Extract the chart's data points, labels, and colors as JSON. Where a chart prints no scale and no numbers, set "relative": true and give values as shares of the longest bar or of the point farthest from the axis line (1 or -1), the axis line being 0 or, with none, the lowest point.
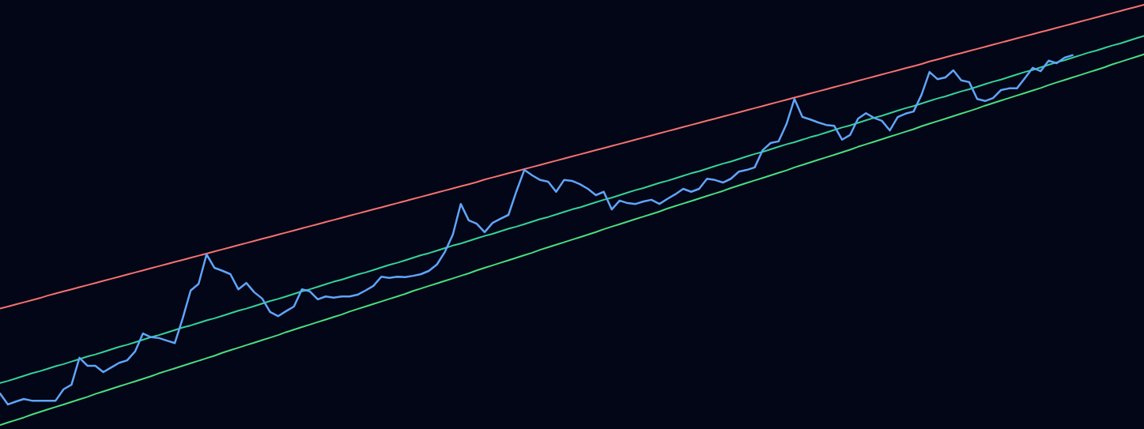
{
  "chart_data": {
    "type": "line",
    "relative": true,
    "categories": [
      null,
      null,
      null,
      null,
      null,
      null,
      null,
      null,
      null,
      null,
      null,
      null,
      null,
      null,
      null,
      null,
      null,
      null,
      null,
      null,
      null,
      null,
      null,
      null,
      null,
      null,
      null,
      null,
      null,
      null,
      null,
      null,
      null,
      null,
      null,
      null,
      null,
      null,
      null,
      null,
      null,
      null,
      null,
      null,
      null,
      null,
      null,
      null,
      null,
      null,
      null,
      null,
      null,
      null,
      null,
      null,
      null,
      null,
      null,
      null,
      null,
      null,
      null,
      null,
      null,
      null,
      null,
      null,
      null,
      null,
      null,
      null,
      null,
      null,
      null,
      null,
      null,
      null,
      null,
      null,
      null,
      null,
      null,
      null,
      null,
      null,
      null,
      null,
      null,
      null,
      null,
      null,
      null,
      null,
      null,
      null,
      null,
      null,
      null,
      null,
      null,
      null,
      null,
      null,
      null,
      null,
      null,
      null,
      null,
      null,
      null,
      null,
      null,
      null,
      null,
      null,
      null,
      null,
      null,
      null,
      null,
      null,
      null,
      null,
      null,
      null,
      null,
      null,
      null,
      null,
      null,
      null,
      null,
      null,
      null,
      null,
      null,
      null,
      null,
      null,
      null,
      null,
      null,
      null,
      null
    ],
    "series": [
      {
        "color": "#f87171",
        "values": [
          0.277,
          0.282,
          0.287,
          0.292,
          0.297,
          0.302,
          0.308,
          0.313,
          0.318,
          0.323,
          0.328,
          0.333,
          0.338,
          0.343,
          0.348,
          0.353,
          0.358,
          0.363,
          0.368,
          0.373,
          0.378,
          0.383,
          0.388,
          0.393,
          0.398,
          0.403,
          0.408,
          0.413,
          0.418,
          0.423,
          0.428,
          0.433,
          0.438,
          0.443,
          0.448,
          0.453,
          0.458,
          0.463,
          0.468,
          0.473,
          0.478,
          0.483,
          0.488,
          0.493,
          0.498,
          0.503,
          0.508,
          0.513,
          0.518,
          0.523,
          0.528,
          0.533,
          0.538,
          0.543,
          0.548,
          0.553,
          0.558,
          0.563,
          0.568,
          0.573,
          0.578,
          0.584,
          0.589,
          0.594,
          0.599,
          0.604,
          0.609,
          0.614,
          0.619,
          0.624,
          0.629,
          0.634,
          0.639,
          0.644,
          0.649,
          0.654,
          0.659,
          0.664,
          0.669,
          0.674,
          0.679,
          0.684,
          0.689,
          0.694,
          0.699,
          0.704,
          0.709,
          0.714,
          0.719,
          0.724,
          0.729,
          0.734,
          0.739,
          0.744,
          0.749,
          0.754,
          0.759,
          0.764,
          0.769,
          0.774,
          0.779,
          0.784,
          0.789,
          0.794,
          0.799,
          0.804,
          0.809,
          0.814,
          0.819,
          0.824,
          0.829,
          0.834,
          0.839,
          0.844,
          0.849,
          0.854,
          0.859,
          0.865,
          0.87,
          0.875,
          0.88,
          0.885,
          0.89,
          0.895,
          0.9,
          0.905,
          0.91,
          0.915,
          0.92,
          0.925,
          0.93,
          0.935,
          0.94,
          0.945,
          0.95,
          0.955,
          0.96,
          0.965,
          0.97,
          0.975,
          0.98,
          0.985,
          0.99,
          0.995,
          1.0
        ]
      },
      {
        "color": "#34d399",
        "values": [
          0.1,
          0.105,
          0.111,
          0.117,
          0.123,
          0.128,
          0.134,
          0.14,
          0.145,
          0.151,
          0.157,
          0.163,
          0.168,
          0.174,
          0.18,
          0.186,
          0.191,
          0.197,
          0.203,
          0.209,
          0.214,
          0.22,
          0.226,
          0.232,
          0.237,
          0.243,
          0.249,
          0.254,
          0.26,
          0.266,
          0.272,
          0.277,
          0.283,
          0.289,
          0.295,
          0.3,
          0.306,
          0.312,
          0.318,
          0.323,
          0.329,
          0.335,
          0.341,
          0.346,
          0.352,
          0.358,
          0.363,
          0.369,
          0.375,
          0.381,
          0.386,
          0.392,
          0.398,
          0.404,
          0.409,
          0.415,
          0.421,
          0.427,
          0.432,
          0.438,
          0.444,
          0.45,
          0.455,
          0.461,
          0.467,
          0.472,
          0.478,
          0.484,
          0.49,
          0.495,
          0.501,
          0.507,
          0.513,
          0.518,
          0.524,
          0.53,
          0.536,
          0.541,
          0.547,
          0.553,
          0.559,
          0.564,
          0.57,
          0.576,
          0.581,
          0.587,
          0.593,
          0.599,
          0.604,
          0.61,
          0.616,
          0.622,
          0.627,
          0.633,
          0.639,
          0.645,
          0.65,
          0.656,
          0.662,
          0.668,
          0.673,
          0.679,
          0.685,
          0.69,
          0.696,
          0.702,
          0.708,
          0.713,
          0.719,
          0.725,
          0.731,
          0.736,
          0.742,
          0.748,
          0.754,
          0.759,
          0.765,
          0.771,
          0.777,
          0.782,
          0.788,
          0.794,
          0.799,
          0.805,
          0.811,
          0.817,
          0.822,
          0.828,
          0.834,
          0.84,
          0.845,
          0.851,
          0.857,
          0.863,
          0.868,
          0.874,
          0.88,
          0.886,
          0.891,
          0.897,
          0.903,
          0.908,
          0.914,
          0.92,
          0.926
        ]
      },
      {
        "color": "#4ade80",
        "values": [
          0,
          0.006,
          0.012,
          0.018,
          0.025,
          0.031,
          0.037,
          0.043,
          0.049,
          0.055,
          0.061,
          0.067,
          0.074,
          0.08,
          0.086,
          0.092,
          0.098,
          0.104,
          0.11,
          0.116,
          0.123,
          0.129,
          0.135,
          0.141,
          0.147,
          0.153,
          0.159,
          0.165,
          0.172,
          0.178,
          0.184,
          0.19,
          0.196,
          0.202,
          0.208,
          0.214,
          0.221,
          0.227,
          0.233,
          0.239,
          0.245,
          0.251,
          0.257,
          0.263,
          0.27,
          0.276,
          0.282,
          0.288,
          0.294,
          0.3,
          0.306,
          0.312,
          0.319,
          0.325,
          0.331,
          0.337,
          0.343,
          0.349,
          0.355,
          0.361,
          0.368,
          0.374,
          0.38,
          0.386,
          0.392,
          0.398,
          0.404,
          0.41,
          0.417,
          0.423,
          0.429,
          0.435,
          0.441,
          0.447,
          0.453,
          0.459,
          0.466,
          0.472,
          0.478,
          0.484,
          0.49,
          0.496,
          0.502,
          0.508,
          0.515,
          0.521,
          0.527,
          0.533,
          0.539,
          0.545,
          0.551,
          0.557,
          0.564,
          0.57,
          0.576,
          0.582,
          0.588,
          0.594,
          0.6,
          0.606,
          0.613,
          0.619,
          0.625,
          0.631,
          0.637,
          0.643,
          0.649,
          0.655,
          0.662,
          0.668,
          0.674,
          0.68,
          0.686,
          0.692,
          0.698,
          0.704,
          0.711,
          0.717,
          0.723,
          0.729,
          0.735,
          0.741,
          0.747,
          0.753,
          0.76,
          0.766,
          0.772,
          0.778,
          0.784,
          0.79,
          0.796,
          0.802,
          0.809,
          0.815,
          0.821,
          0.827,
          0.833,
          0.839,
          0.845,
          0.851,
          0.858,
          0.864,
          0.87,
          0.876,
          0.882
        ]
      },
      {
        "color": "#60a5fa",
        "values": [
          0.075,
          0.049,
          0.056,
          0.062,
          0.058,
          0.058,
          0.058,
          0.058,
          0.085,
          0.096,
          0.16,
          0.141,
          0.141,
          0.126,
          0.137,
          0.148,
          0.154,
          0.175,
          0.218,
          0.209,
          0.207,
          0.201,
          0.195,
          0.254,
          0.32,
          0.336,
          0.406,
          0.374,
          0.367,
          0.359,
          0.323,
          0.338,
          0.316,
          0.301,
          0.269,
          0.259,
          0.271,
          0.282,
          0.323,
          0.318,
          0.299,
          0.306,
          0.303,
          0.306,
          0.306,
          0.31,
          0.32,
          0.331,
          0.353,
          0.35,
          0.353,
          0.352,
          0.355,
          0.359,
          0.367,
          0.382,
          0.412,
          0.453,
          0.526,
          0.487,
          0.479,
          0.459,
          0.481,
          0.491,
          0.5,
          0.556,
          0.607,
          0.594,
          0.583,
          0.579,
          0.555,
          0.583,
          0.581,
          0.573,
          0.562,
          0.547,
          0.555,
          0.513,
          0.534,
          0.528,
          0.526,
          0.532,
          0.536,
          0.526,
          0.538,
          0.549,
          0.562,
          0.555,
          0.562,
          0.586,
          0.583,
          0.577,
          0.586,
          0.603,
          0.607,
          0.613,
          0.654,
          0.671,
          0.675,
          0.716,
          0.776,
          0.733,
          0.727,
          0.72,
          0.714,
          0.712,
          0.679,
          0.69,
          0.729,
          0.742,
          0.731,
          0.724,
          0.701,
          0.733,
          0.741,
          0.746,
          0.786,
          0.84,
          0.823,
          0.827,
          0.844,
          0.82,
          0.816,
          0.776,
          0.771,
          0.778,
          0.797,
          0.801,
          0.801,
          0.825,
          0.85,
          0.842,
          0.867,
          0.861,
          0.874,
          0.88,
          null,
          null,
          null,
          null,
          null,
          null,
          null,
          null,
          null
        ]
      }
    ]
  }
}
